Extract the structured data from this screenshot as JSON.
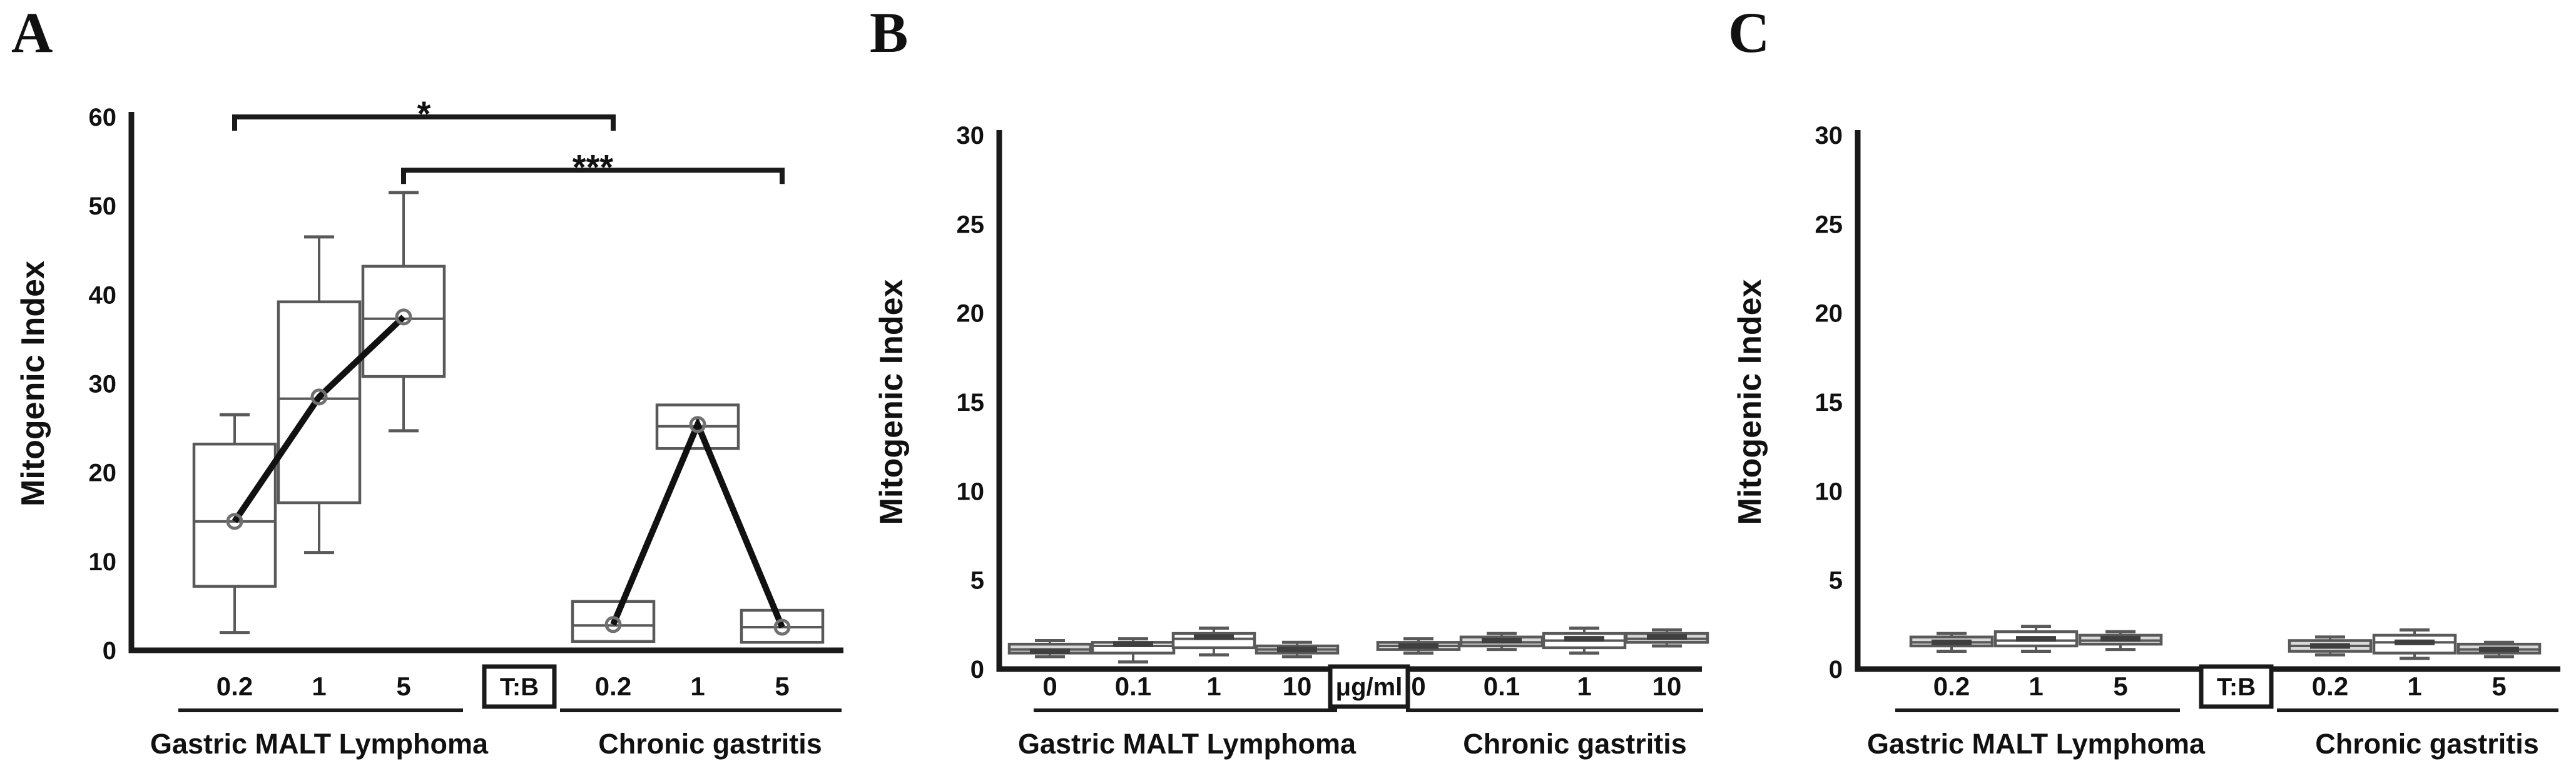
{
  "style": {
    "background": "#ffffff",
    "axis_color": "#1a1a1a",
    "box_stroke": "#595959",
    "box_fill_white": "#ffffff",
    "box_fill_gray": "#d9d9d9",
    "mean_line_color": "#111111",
    "mean_circle_color": "#707070",
    "mean_dash_color": "#3f3f3f",
    "bracket_color": "#1a1a1a",
    "text_color": "#111111"
  },
  "chart_data": [
    {
      "type": "box",
      "panel_label": "A",
      "ylabel": "Mitogenic Index",
      "ylim": [
        0,
        60
      ],
      "yticks": [
        0,
        10,
        20,
        30,
        40,
        50,
        60
      ],
      "grid": false,
      "unit_label": "T:B",
      "groups": [
        {
          "label": "Gastric MALT Lymphoma",
          "categories": [
            "0.2",
            "1",
            "5"
          ],
          "mean_line": true,
          "boxes": [
            {
              "whisker_low": 2.0,
              "q1": 7.2,
              "median": 14.5,
              "q3": 23.2,
              "whisker_high": 26.5,
              "mean": 14.5,
              "fill": "white"
            },
            {
              "whisker_low": 11.0,
              "q1": 16.6,
              "median": 28.3,
              "q3": 39.2,
              "whisker_high": 46.5,
              "mean": 28.5,
              "fill": "white"
            },
            {
              "whisker_low": 24.7,
              "q1": 30.8,
              "median": 37.3,
              "q3": 43.2,
              "whisker_high": 51.5,
              "mean": 37.5,
              "fill": "white"
            }
          ]
        },
        {
          "label": "Chronic gastritis",
          "categories": [
            "0.2",
            "1",
            "5"
          ],
          "mean_line": true,
          "boxes": [
            {
              "whisker_low": null,
              "q1": 1.0,
              "median": 2.8,
              "q3": 5.5,
              "whisker_high": null,
              "mean": 2.9,
              "fill": "white"
            },
            {
              "whisker_low": null,
              "q1": 22.7,
              "median": 25.2,
              "q3": 27.6,
              "whisker_high": null,
              "mean": 25.4,
              "fill": "white"
            },
            {
              "whisker_low": null,
              "q1": 0.9,
              "median": 2.6,
              "q3": 4.5,
              "whisker_high": null,
              "mean": 2.6,
              "fill": "white"
            }
          ]
        }
      ],
      "significance": [
        {
          "from_group": 0,
          "from_cat": 0,
          "to_group": 1,
          "to_cat": 0,
          "label": "*",
          "y": 60
        },
        {
          "from_group": 0,
          "from_cat": 2,
          "to_group": 1,
          "to_cat": 2,
          "label": "***",
          "y": 54
        }
      ]
    },
    {
      "type": "box",
      "panel_label": "B",
      "ylabel": "Mitogenic Index",
      "ylim": [
        0,
        30
      ],
      "yticks": [
        0,
        5,
        10,
        15,
        20,
        25,
        30
      ],
      "grid": false,
      "unit_label": "μg/ml",
      "groups": [
        {
          "label": "Gastric MALT Lymphoma",
          "categories": [
            "0",
            "0.1",
            "1",
            "10"
          ],
          "mean_line": false,
          "boxes": [
            {
              "whisker_low": 0.7,
              "q1": 0.9,
              "median": 1.1,
              "q3": 1.4,
              "whisker_high": 1.6,
              "mean": 1.0,
              "fill": "gray"
            },
            {
              "whisker_low": 0.4,
              "q1": 0.9,
              "median": 1.3,
              "q3": 1.5,
              "whisker_high": 1.7,
              "mean": 1.4,
              "fill": "white"
            },
            {
              "whisker_low": 0.8,
              "q1": 1.2,
              "median": 1.7,
              "q3": 2.0,
              "whisker_high": 2.3,
              "mean": 1.8,
              "fill": "white"
            },
            {
              "whisker_low": 0.7,
              "q1": 0.9,
              "median": 1.1,
              "q3": 1.3,
              "whisker_high": 1.5,
              "mean": 1.1,
              "fill": "gray"
            }
          ]
        },
        {
          "label": "Chronic gastritis",
          "categories": [
            "0",
            "0.1",
            "1",
            "10"
          ],
          "mean_line": false,
          "boxes": [
            {
              "whisker_low": 0.9,
              "q1": 1.1,
              "median": 1.3,
              "q3": 1.5,
              "whisker_high": 1.7,
              "mean": 1.3,
              "fill": "gray"
            },
            {
              "whisker_low": 1.1,
              "q1": 1.3,
              "median": 1.5,
              "q3": 1.8,
              "whisker_high": 2.0,
              "mean": 1.6,
              "fill": "gray"
            },
            {
              "whisker_low": 0.9,
              "q1": 1.2,
              "median": 1.6,
              "q3": 2.0,
              "whisker_high": 2.3,
              "mean": 1.7,
              "fill": "white"
            },
            {
              "whisker_low": 1.3,
              "q1": 1.5,
              "median": 1.7,
              "q3": 2.0,
              "whisker_high": 2.2,
              "mean": 1.8,
              "fill": "gray"
            }
          ]
        }
      ],
      "significance": []
    },
    {
      "type": "box",
      "panel_label": "C",
      "ylabel": "Mitogenic Index",
      "ylim": [
        0,
        30
      ],
      "yticks": [
        0,
        5,
        10,
        15,
        20,
        25,
        30
      ],
      "grid": false,
      "unit_label": "T:B",
      "groups": [
        {
          "label": "Gastric MALT Lymphoma",
          "categories": [
            "0.2",
            "1",
            "5"
          ],
          "mean_line": false,
          "boxes": [
            {
              "whisker_low": 1.0,
              "q1": 1.3,
              "median": 1.5,
              "q3": 1.8,
              "whisker_high": 2.0,
              "mean": 1.5,
              "fill": "gray"
            },
            {
              "whisker_low": 1.0,
              "q1": 1.3,
              "median": 1.6,
              "q3": 2.1,
              "whisker_high": 2.4,
              "mean": 1.7,
              "fill": "white"
            },
            {
              "whisker_low": 1.1,
              "q1": 1.4,
              "median": 1.6,
              "q3": 1.9,
              "whisker_high": 2.1,
              "mean": 1.7,
              "fill": "gray"
            }
          ]
        },
        {
          "label": "Chronic gastritis",
          "categories": [
            "0.2",
            "1",
            "5"
          ],
          "mean_line": false,
          "boxes": [
            {
              "whisker_low": 0.8,
              "q1": 1.0,
              "median": 1.3,
              "q3": 1.6,
              "whisker_high": 1.8,
              "mean": 1.3,
              "fill": "gray"
            },
            {
              "whisker_low": 0.6,
              "q1": 0.9,
              "median": 1.5,
              "q3": 1.9,
              "whisker_high": 2.2,
              "mean": 1.5,
              "fill": "white"
            },
            {
              "whisker_low": 0.7,
              "q1": 0.9,
              "median": 1.1,
              "q3": 1.4,
              "whisker_high": 1.5,
              "mean": 1.1,
              "fill": "gray"
            }
          ]
        }
      ],
      "significance": []
    }
  ]
}
